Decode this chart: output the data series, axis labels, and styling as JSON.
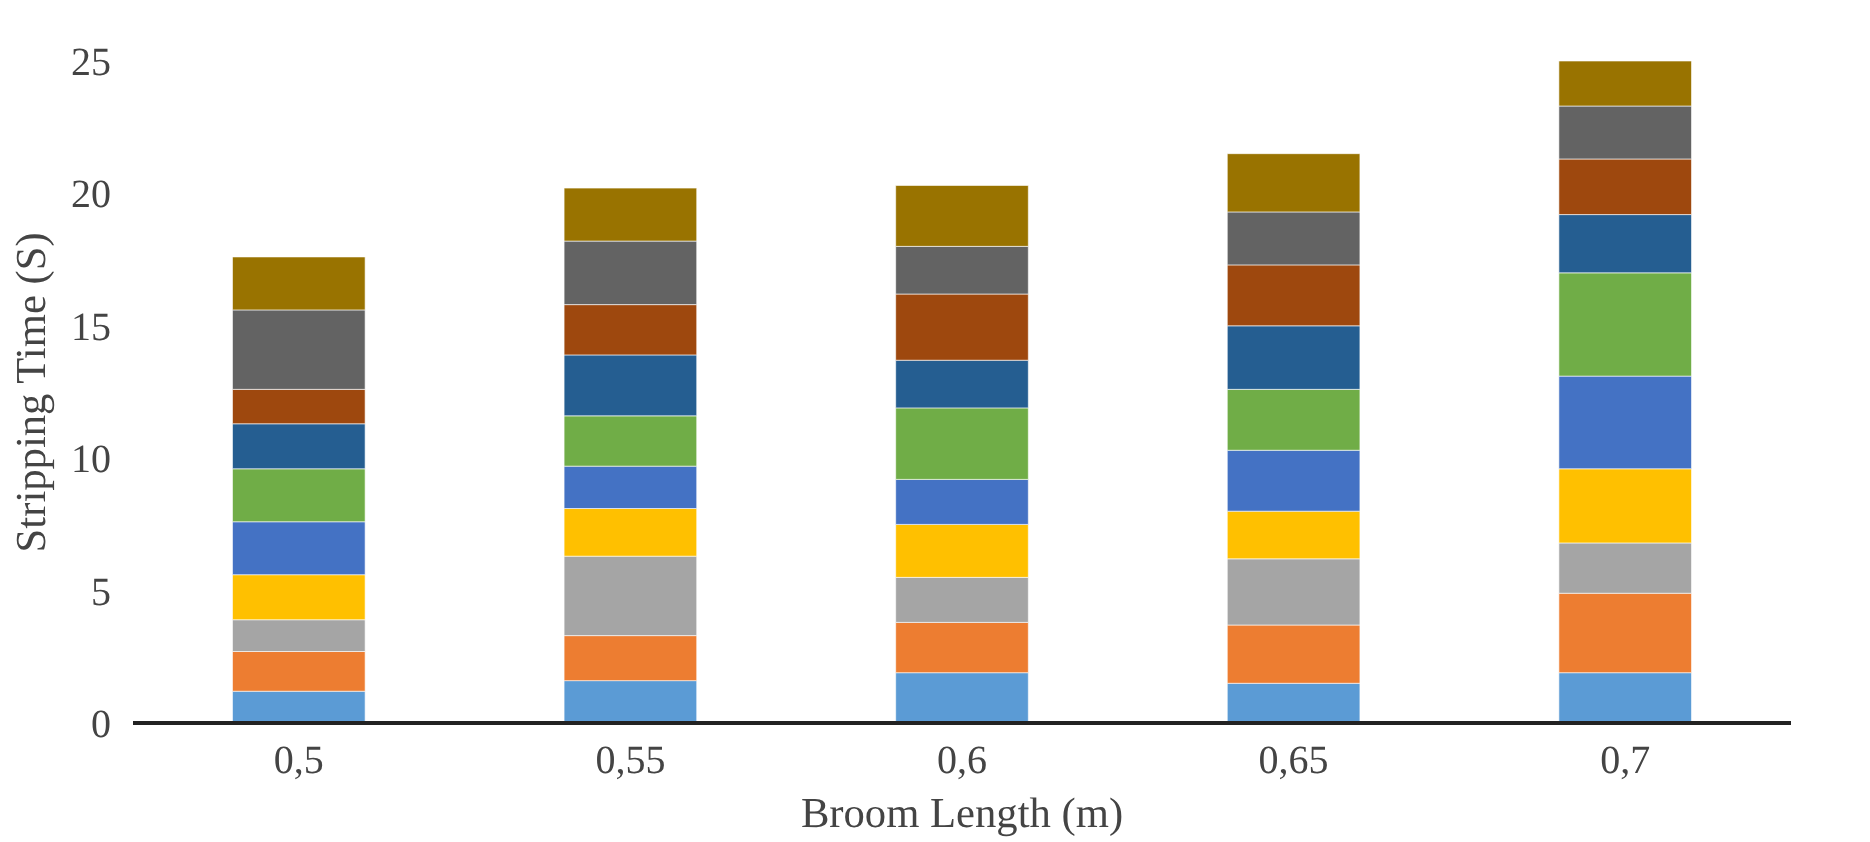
{
  "chart_data": {
    "type": "bar",
    "stacked": true,
    "xlabel": "Broom Length (m)",
    "ylabel": "Stripping Time (S)",
    "categories": [
      "0,5",
      "0,55",
      "0,6",
      "0,65",
      "0,7"
    ],
    "ylim": [
      0,
      25
    ],
    "yticks": [
      0,
      5,
      10,
      15,
      20,
      25
    ],
    "grid": false,
    "series": [
      {
        "color": "#5b9bd5",
        "values": [
          1.2,
          1.6,
          1.9,
          1.5,
          1.9
        ]
      },
      {
        "color": "#ed7d31",
        "values": [
          1.5,
          1.7,
          1.9,
          2.2,
          3.0
        ]
      },
      {
        "color": "#a5a5a5",
        "values": [
          1.2,
          3.0,
          1.7,
          2.5,
          1.9
        ]
      },
      {
        "color": "#ffc000",
        "values": [
          1.7,
          1.8,
          2.0,
          1.8,
          2.8
        ]
      },
      {
        "color": "#4472c4",
        "values": [
          2.0,
          1.6,
          1.7,
          2.3,
          3.5
        ]
      },
      {
        "color": "#70ad47",
        "values": [
          2.0,
          1.9,
          2.7,
          2.3,
          3.9
        ]
      },
      {
        "color": "#255e91",
        "values": [
          1.7,
          2.3,
          1.8,
          2.4,
          2.2
        ]
      },
      {
        "color": "#9e480e",
        "values": [
          1.3,
          1.9,
          2.5,
          2.3,
          2.1
        ]
      },
      {
        "color": "#636363",
        "values": [
          3.0,
          2.4,
          1.8,
          2.0,
          2.0
        ]
      },
      {
        "color": "#997300",
        "values": [
          2.0,
          2.0,
          2.3,
          2.2,
          1.7
        ]
      }
    ]
  }
}
